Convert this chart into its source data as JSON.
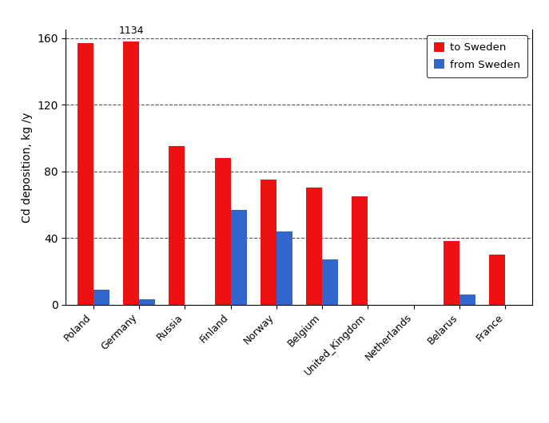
{
  "categories": [
    "Poland",
    "Germany",
    "Russia",
    "Finland",
    "Norway",
    "Belgium",
    "United_Kingdom",
    "Netherlands",
    "Belarus",
    "France"
  ],
  "to_sweden": [
    157,
    158,
    95,
    88,
    75,
    70,
    65,
    0,
    38,
    30
  ],
  "from_sweden": [
    9,
    3,
    0,
    57,
    44,
    27,
    0,
    0,
    6,
    0
  ],
  "annotation_val": "1134",
  "bar_width": 0.35,
  "color_to": "#EE1111",
  "color_from": "#3366CC",
  "ylabel": "Cd deposition, kg /y",
  "ylim": [
    0,
    165
  ],
  "yticks": [
    0,
    40,
    80,
    120,
    160
  ],
  "legend_to": "to Sweden",
  "legend_from": "from Sweden",
  "grid_color": "#555555",
  "bg_color": "#ffffff",
  "tick_label_fontsize": 9,
  "ylabel_fontsize": 10
}
